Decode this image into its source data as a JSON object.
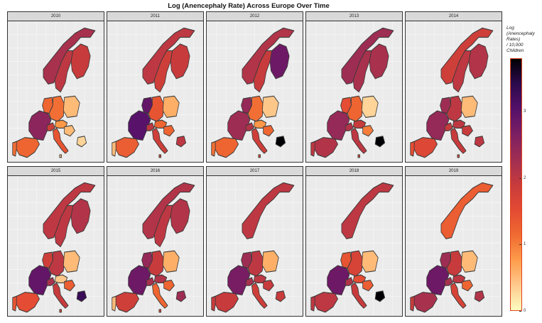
{
  "title": "Log (Anencephaly Rate) Across Europe Over Time",
  "legend": {
    "title": "Log\n(Anencephaly\nRates)\n/ 10,000\nChildren",
    "ticks": [
      "3",
      "2",
      "1",
      "0"
    ],
    "colors": [
      "#fcfdbf",
      "#fec98d",
      "#fd9c4b",
      "#f06a31",
      "#e34a33",
      "#c73b3c",
      "#a02e52",
      "#7c1f63",
      "#54106a",
      "#2c0a4d",
      "#000004"
    ]
  },
  "colors": {
    "panel_background": "#ebebeb",
    "strip_background": "#d9d9d9",
    "legend_border": "#e0441a"
  },
  "chart_data": {
    "type": "heatmap",
    "value_range": [
      0,
      3.8
    ],
    "countries": [
      "Norway",
      "Sweden",
      "Finland",
      "Netherlands",
      "Germany",
      "Poland",
      "France",
      "Switzerland",
      "Austria",
      "Hungary",
      "Italy",
      "Spain",
      "Portugal",
      "Malta",
      "Bulgaria"
    ],
    "panels": [
      {
        "year": "2010",
        "values": {
          "Norway": 2.2,
          "Sweden": 2.0,
          "Finland": 1.9,
          "Netherlands": 1.2,
          "Germany": 1.1,
          "Poland": 0.5,
          "France": 2.5,
          "Switzerland": 1.8,
          "Austria": 0.8,
          "Hungary": 0.5,
          "Italy": 1.4,
          "Spain": 1.2,
          "Portugal": 1.1,
          "Malta": 0.5,
          "Bulgaria": 0.3
        }
      },
      {
        "year": "2011",
        "values": {
          "Norway": 2.0,
          "Sweden": 1.8,
          "Finland": 1.9,
          "Netherlands": 2.9,
          "Germany": 1.4,
          "Poland": 0.6,
          "France": 3.0,
          "Switzerland": 2.0,
          "Austria": 1.2,
          "Hungary": 1.2,
          "Italy": 1.8,
          "Spain": 1.3,
          "Portugal": 0.5,
          "Malta": 1.6,
          "Bulgaria": 2.0
        }
      },
      {
        "year": "2012",
        "values": {
          "Norway": 2.1,
          "Sweden": 1.9,
          "Finland": 2.8,
          "Netherlands": 2.4,
          "Germany": 1.1,
          "Poland": 0.4,
          "France": 2.3,
          "Switzerland": 2.1,
          "Austria": 0.8,
          "Hungary": 1.2,
          "Italy": 1.8,
          "Spain": 1.2,
          "Portugal": 1.1,
          "Malta": 1.5,
          "Bulgaria": 3.8
        }
      },
      {
        "year": "2013",
        "values": {
          "Norway": 2.3,
          "Sweden": 2.2,
          "Finland": 2.2,
          "Netherlands": 1.5,
          "Germany": 1.2,
          "Poland": 0.3,
          "France": 2.4,
          "Switzerland": 2.1,
          "Austria": 1.9,
          "Hungary": 1.0,
          "Italy": 2.0,
          "Spain": 2.1,
          "Portugal": 2.0,
          "Malta": 1.5,
          "Bulgaria": 3.8
        }
      },
      {
        "year": "2014",
        "values": {
          "Norway": 1.8,
          "Sweden": 2.0,
          "Finland": 2.1,
          "Netherlands": 2.3,
          "Germany": 2.0,
          "Poland": 0.5,
          "France": 2.4,
          "Switzerland": 1.9,
          "Austria": 2.0,
          "Hungary": 1.9,
          "Italy": 1.9,
          "Spain": 1.6,
          "Portugal": 1.5,
          "Malta": 1.5,
          "Bulgaria": 2.0
        }
      },
      {
        "year": "2015",
        "values": {
          "Norway": 2.0,
          "Sweden": 2.0,
          "Finland": 2.1,
          "Netherlands": 1.8,
          "Germany": 2.0,
          "Poland": 0.5,
          "France": 2.9,
          "Switzerland": 2.2,
          "Austria": 0.4,
          "Hungary": 1.3,
          "Italy": 1.9,
          "Spain": 1.5,
          "Portugal": 1.4,
          "Malta": 1.5,
          "Bulgaria": 3.3
        }
      },
      {
        "year": "2016",
        "values": {
          "Norway": 2.1,
          "Sweden": 2.0,
          "Finland": 2.1,
          "Netherlands": 2.4,
          "Germany": 1.9,
          "Poland": 0.6,
          "France": 2.8,
          "Switzerland": 2.2,
          "Austria": 2.1,
          "Hungary": 1.2,
          "Italy": 1.2,
          "Spain": 1.8,
          "Portugal": 0.5,
          "Malta": 1.5,
          "Bulgaria": 2.3
        }
      },
      {
        "year": "2017",
        "values": {
          "Norway": 2.0,
          "Sweden": null,
          "Finland": null,
          "Netherlands": 2.3,
          "Germany": 2.0,
          "Poland": 0.6,
          "France": 2.7,
          "Switzerland": 2.2,
          "Austria": 2.0,
          "Hungary": 1.9,
          "Italy": 1.8,
          "Spain": 1.9,
          "Portugal": 1.9,
          "Malta": null,
          "Bulgaria": 1.9
        }
      },
      {
        "year": "2018",
        "values": {
          "Norway": 2.0,
          "Sweden": null,
          "Finland": null,
          "Netherlands": 1.4,
          "Germany": 1.7,
          "Poland": 0.5,
          "France": 2.8,
          "Switzerland": 2.1,
          "Austria": 1.5,
          "Hungary": 1.3,
          "Italy": 1.9,
          "Spain": 2.0,
          "Portugal": 2.0,
          "Malta": null,
          "Bulgaria": 3.8
        }
      },
      {
        "year": "2019",
        "values": {
          "Norway": 1.3,
          "Sweden": null,
          "Finland": null,
          "Netherlands": 2.3,
          "Germany": 1.9,
          "Poland": 0.5,
          "France": 2.8,
          "Switzerland": 2.2,
          "Austria": 2.0,
          "Hungary": 1.2,
          "Italy": 1.7,
          "Spain": 2.2,
          "Portugal": 1.9,
          "Malta": null,
          "Bulgaria": 2.1
        }
      }
    ]
  }
}
